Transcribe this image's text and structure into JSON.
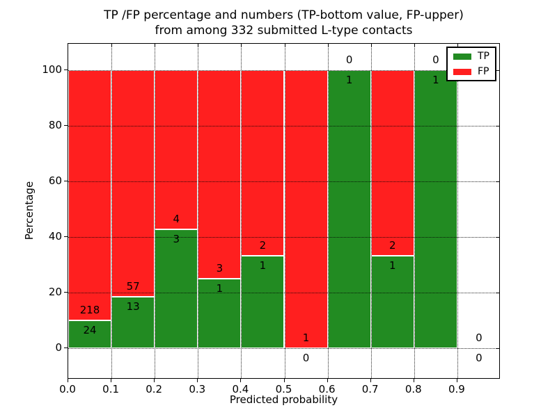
{
  "title": {
    "line1": "TP /FP percentage and numbers (TP-bottom value, FP-upper)",
    "line2": "from among 332 submitted L-type contacts"
  },
  "axes": {
    "xlabel": "Predicted probability",
    "ylabel": "Percentage",
    "x_tick_labels": [
      "0.0",
      "0.1",
      "0.2",
      "0.3",
      "0.4",
      "0.5",
      "0.6",
      "0.7",
      "0.8",
      "0.9"
    ],
    "x_tick_values": [
      0.0,
      0.1,
      0.2,
      0.3,
      0.4,
      0.5,
      0.6,
      0.7,
      0.8,
      0.9
    ],
    "y_tick_labels": [
      "0",
      "20",
      "40",
      "60",
      "80",
      "100"
    ],
    "y_tick_values": [
      0,
      20,
      40,
      60,
      80,
      100
    ]
  },
  "legend": {
    "items": [
      {
        "label": "TP",
        "color": "#228b22"
      },
      {
        "label": "FP",
        "color": "#ff1f1f"
      }
    ]
  },
  "chart_data": {
    "type": "bar",
    "stacked": true,
    "title": "TP /FP percentage and numbers (TP-bottom value, FP-upper) from among 332 submitted L-type contacts",
    "xlabel": "Predicted probability",
    "ylabel": "Percentage",
    "total_submitted": 332,
    "bin_edges": [
      0.0,
      0.1,
      0.2,
      0.3,
      0.4,
      0.5,
      0.6,
      0.7,
      0.8,
      0.9,
      1.0
    ],
    "bin_starts": [
      0.0,
      0.1,
      0.2,
      0.3,
      0.4,
      0.5,
      0.6,
      0.7,
      0.8,
      0.9
    ],
    "series": [
      {
        "name": "TP",
        "color": "#228b22",
        "counts": [
          24,
          13,
          3,
          1,
          1,
          0,
          1,
          1,
          1,
          0
        ],
        "percent": [
          9.92,
          18.57,
          42.86,
          25.0,
          33.33,
          0.0,
          100.0,
          33.33,
          100.0,
          null
        ]
      },
      {
        "name": "FP",
        "color": "#ff1f1f",
        "counts": [
          218,
          57,
          4,
          3,
          2,
          1,
          0,
          2,
          0,
          0
        ],
        "percent": [
          90.08,
          81.43,
          57.14,
          75.0,
          66.67,
          100.0,
          0.0,
          66.67,
          0.0,
          null
        ]
      }
    ],
    "label_convention": "TP count below boundary, FP count above boundary",
    "xlim": [
      0.0,
      1.0
    ],
    "ylim": [
      -11.25,
      109.5
    ],
    "grid": true,
    "grid_style": "dotted",
    "bar_edge_color": "#ffffff",
    "legend_position": "upper right"
  }
}
